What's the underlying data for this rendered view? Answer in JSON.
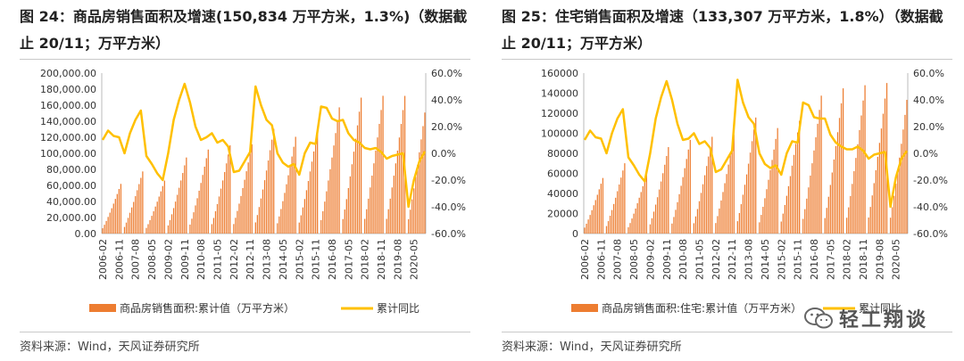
{
  "watermark": {
    "text": "轻工翔谈",
    "icon": "wechat-icon"
  },
  "colors": {
    "bar": "#ED7D31",
    "line": "#FFC000"
  },
  "dates": [
    "2006-02",
    "2006-11",
    "2007-08",
    "2008-05",
    "2009-02",
    "2009-11",
    "2010-08",
    "2011-05",
    "2012-02",
    "2012-11",
    "2013-08",
    "2014-05",
    "2015-02",
    "2015-11",
    "2016-08",
    "2017-05",
    "2018-02",
    "2018-11",
    "2019-08",
    "2020-05"
  ],
  "charts": [
    {
      "title": "图 24：商品房销售面积及增速(150,834 万平方米，1.3%)（数据截止 20/11；万平方米）",
      "source": "资料来源：Wind，天风证券研究所",
      "legend_bar": "商品房销售面积:累计值（万平方米）",
      "legend_line": "累计同比",
      "left_ticks": [
        "200,000.00",
        "180,000.00",
        "160,000.00",
        "140,000.00",
        "120,000.00",
        "100,000.00",
        "80,000.00",
        "60,000.00",
        "40,000.00",
        "20,000.00",
        "0.00"
      ],
      "right_ticks": [
        "60.0%",
        "40.0%",
        "20.0%",
        "0.0%",
        "-20.0%",
        "-40.0%",
        "-60.0%"
      ]
    },
    {
      "title": "图 25：住宅销售面积及增速（133,307 万平方米，1.8%）（数据截止 20/11；万平方米）",
      "source": "资料来源：Wind，天风证券研究所",
      "legend_bar": "商品房销售面积:住宅:累计值（万平方米）",
      "legend_line": "累计同比",
      "left_ticks": [
        "160000",
        "140000",
        "120000",
        "100000",
        "80000",
        "60000",
        "40000",
        "20000",
        "0"
      ],
      "right_ticks": [
        "60.0%",
        "40.0%",
        "20.0%",
        "0.0%",
        "-20.0%",
        "-40.0%",
        "-60.0%"
      ]
    }
  ],
  "chart_data": [
    {
      "type": "bar+line",
      "title": "图 24：商品房销售面积及增速(150,834 万平方米，1.3%)（数据截止 20/11；万平方米）",
      "ylim_left": [
        0,
        200000
      ],
      "ylim_right": [
        -60,
        60
      ],
      "x_start": "2006-02",
      "x_end": "2020-11",
      "year_end_totals": [
        {
          "year": 2006,
          "value": 61900
        },
        {
          "year": 2007,
          "value": 77400
        },
        {
          "year": 2008,
          "value": 66000
        },
        {
          "year": 2009,
          "value": 94800
        },
        {
          "year": 2010,
          "value": 104700
        },
        {
          "year": 2011,
          "value": 109900
        },
        {
          "year": 2012,
          "value": 111300
        },
        {
          "year": 2013,
          "value": 130500
        },
        {
          "year": 2014,
          "value": 120600
        },
        {
          "year": 2015,
          "value": 128500
        },
        {
          "year": 2016,
          "value": 157300
        },
        {
          "year": 2017,
          "value": 169400
        },
        {
          "year": 2018,
          "value": 171700
        },
        {
          "year": 2019,
          "value": 171600
        },
        {
          "year": 2020,
          "value": 150834
        }
      ],
      "yoy_points": [
        {
          "x": "2006-02",
          "y": 10
        },
        {
          "x": "2006-05",
          "y": 17
        },
        {
          "x": "2006-08",
          "y": 13
        },
        {
          "x": "2006-11",
          "y": 12
        },
        {
          "x": "2007-02",
          "y": 0
        },
        {
          "x": "2007-05",
          "y": 15
        },
        {
          "x": "2007-08",
          "y": 25
        },
        {
          "x": "2007-11",
          "y": 32
        },
        {
          "x": "2008-02",
          "y": -2
        },
        {
          "x": "2008-05",
          "y": -8
        },
        {
          "x": "2008-08",
          "y": -15
        },
        {
          "x": "2008-11",
          "y": -20
        },
        {
          "x": "2009-02",
          "y": 0
        },
        {
          "x": "2009-05",
          "y": 25
        },
        {
          "x": "2009-08",
          "y": 40
        },
        {
          "x": "2009-11",
          "y": 52
        },
        {
          "x": "2010-02",
          "y": 38
        },
        {
          "x": "2010-05",
          "y": 20
        },
        {
          "x": "2010-08",
          "y": 10
        },
        {
          "x": "2010-11",
          "y": 12
        },
        {
          "x": "2011-02",
          "y": 15
        },
        {
          "x": "2011-05",
          "y": 8
        },
        {
          "x": "2011-08",
          "y": 10
        },
        {
          "x": "2011-11",
          "y": 5
        },
        {
          "x": "2012-02",
          "y": -14
        },
        {
          "x": "2012-05",
          "y": -13
        },
        {
          "x": "2012-08",
          "y": -6
        },
        {
          "x": "2012-11",
          "y": 1
        },
        {
          "x": "2013-02",
          "y": 50
        },
        {
          "x": "2013-05",
          "y": 36
        },
        {
          "x": "2013-08",
          "y": 25
        },
        {
          "x": "2013-11",
          "y": 21
        },
        {
          "x": "2014-02",
          "y": 0
        },
        {
          "x": "2014-05",
          "y": -7
        },
        {
          "x": "2014-08",
          "y": -10
        },
        {
          "x": "2014-11",
          "y": -8
        },
        {
          "x": "2015-02",
          "y": -16
        },
        {
          "x": "2015-05",
          "y": 0
        },
        {
          "x": "2015-08",
          "y": 8
        },
        {
          "x": "2015-11",
          "y": 7
        },
        {
          "x": "2016-02",
          "y": 35
        },
        {
          "x": "2016-05",
          "y": 34
        },
        {
          "x": "2016-08",
          "y": 26
        },
        {
          "x": "2016-11",
          "y": 24
        },
        {
          "x": "2017-02",
          "y": 25
        },
        {
          "x": "2017-05",
          "y": 15
        },
        {
          "x": "2017-08",
          "y": 10
        },
        {
          "x": "2017-11",
          "y": 8
        },
        {
          "x": "2018-02",
          "y": 4
        },
        {
          "x": "2018-05",
          "y": 3
        },
        {
          "x": "2018-08",
          "y": 4
        },
        {
          "x": "2018-11",
          "y": 1
        },
        {
          "x": "2019-02",
          "y": -4
        },
        {
          "x": "2019-05",
          "y": -2
        },
        {
          "x": "2019-08",
          "y": -1
        },
        {
          "x": "2019-11",
          "y": 0
        },
        {
          "x": "2020-02",
          "y": -40
        },
        {
          "x": "2020-05",
          "y": -20
        },
        {
          "x": "2020-08",
          "y": -6
        },
        {
          "x": "2020-11",
          "y": 1.3
        }
      ]
    },
    {
      "type": "bar+line",
      "title": "图 25：住宅销售面积及增速（133,307 万平方米，1.8%）（数据截止 20/11；万平方米）",
      "ylim_left": [
        0,
        160000
      ],
      "ylim_right": [
        -60,
        60
      ],
      "x_start": "2006-02",
      "x_end": "2020-11",
      "year_end_totals": [
        {
          "year": 2006,
          "value": 55400
        },
        {
          "year": 2007,
          "value": 70100
        },
        {
          "year": 2008,
          "value": 59300
        },
        {
          "year": 2009,
          "value": 86200
        },
        {
          "year": 2010,
          "value": 93400
        },
        {
          "year": 2011,
          "value": 96500
        },
        {
          "year": 2012,
          "value": 98500
        },
        {
          "year": 2013,
          "value": 115700
        },
        {
          "year": 2014,
          "value": 105200
        },
        {
          "year": 2015,
          "value": 112400
        },
        {
          "year": 2016,
          "value": 137500
        },
        {
          "year": 2017,
          "value": 144800
        },
        {
          "year": 2018,
          "value": 147900
        },
        {
          "year": 2019,
          "value": 150100
        },
        {
          "year": 2020,
          "value": 133307
        }
      ],
      "yoy_points": [
        {
          "x": "2006-02",
          "y": 10
        },
        {
          "x": "2006-05",
          "y": 17
        },
        {
          "x": "2006-08",
          "y": 12
        },
        {
          "x": "2006-11",
          "y": 11
        },
        {
          "x": "2007-02",
          "y": 0
        },
        {
          "x": "2007-05",
          "y": 15
        },
        {
          "x": "2007-08",
          "y": 26
        },
        {
          "x": "2007-11",
          "y": 33
        },
        {
          "x": "2008-02",
          "y": -3
        },
        {
          "x": "2008-05",
          "y": -9
        },
        {
          "x": "2008-08",
          "y": -16
        },
        {
          "x": "2008-11",
          "y": -21
        },
        {
          "x": "2009-02",
          "y": 0
        },
        {
          "x": "2009-05",
          "y": 26
        },
        {
          "x": "2009-08",
          "y": 42
        },
        {
          "x": "2009-11",
          "y": 54
        },
        {
          "x": "2010-02",
          "y": 40
        },
        {
          "x": "2010-05",
          "y": 22
        },
        {
          "x": "2010-08",
          "y": 10
        },
        {
          "x": "2010-11",
          "y": 11
        },
        {
          "x": "2011-02",
          "y": 15
        },
        {
          "x": "2011-05",
          "y": 7
        },
        {
          "x": "2011-08",
          "y": 9
        },
        {
          "x": "2011-11",
          "y": 4
        },
        {
          "x": "2012-02",
          "y": -14
        },
        {
          "x": "2012-05",
          "y": -12
        },
        {
          "x": "2012-08",
          "y": -5
        },
        {
          "x": "2012-11",
          "y": 2
        },
        {
          "x": "2013-02",
          "y": 55
        },
        {
          "x": "2013-05",
          "y": 38
        },
        {
          "x": "2013-08",
          "y": 27
        },
        {
          "x": "2013-11",
          "y": 22
        },
        {
          "x": "2014-02",
          "y": 0
        },
        {
          "x": "2014-05",
          "y": -8
        },
        {
          "x": "2014-08",
          "y": -11
        },
        {
          "x": "2014-11",
          "y": -9
        },
        {
          "x": "2015-02",
          "y": -16
        },
        {
          "x": "2015-05",
          "y": 0
        },
        {
          "x": "2015-08",
          "y": 9
        },
        {
          "x": "2015-11",
          "y": 8
        },
        {
          "x": "2016-02",
          "y": 38
        },
        {
          "x": "2016-05",
          "y": 36
        },
        {
          "x": "2016-08",
          "y": 27
        },
        {
          "x": "2016-11",
          "y": 26
        },
        {
          "x": "2017-02",
          "y": 26
        },
        {
          "x": "2017-05",
          "y": 14
        },
        {
          "x": "2017-08",
          "y": 8
        },
        {
          "x": "2017-11",
          "y": 5
        },
        {
          "x": "2018-02",
          "y": 3
        },
        {
          "x": "2018-05",
          "y": 3
        },
        {
          "x": "2018-08",
          "y": 5
        },
        {
          "x": "2018-11",
          "y": 2
        },
        {
          "x": "2019-02",
          "y": -4
        },
        {
          "x": "2019-05",
          "y": -1
        },
        {
          "x": "2019-08",
          "y": 0
        },
        {
          "x": "2019-11",
          "y": 1
        },
        {
          "x": "2020-02",
          "y": -40
        },
        {
          "x": "2020-05",
          "y": -18
        },
        {
          "x": "2020-08",
          "y": -4
        },
        {
          "x": "2020-11",
          "y": 1.8
        }
      ]
    }
  ]
}
